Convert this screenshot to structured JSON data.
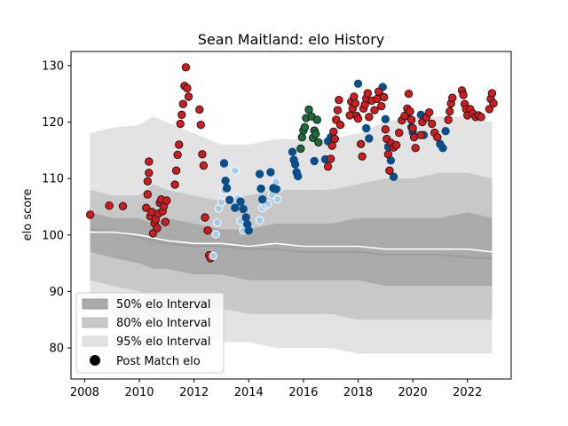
{
  "chart_data": {
    "type": "scatter",
    "title": "Sean Maitland: elo History",
    "xlabel": "",
    "ylabel": "elo score",
    "xlim": [
      2007.5,
      2023.6
    ],
    "ylim": [
      74.5,
      132.5
    ],
    "xticks": [
      2008,
      2010,
      2012,
      2014,
      2016,
      2018,
      2020,
      2022
    ],
    "yticks": [
      80,
      90,
      100,
      110,
      120,
      130
    ],
    "legend": {
      "position": "lower-left",
      "entries": [
        "50% elo Interval",
        "80% elo Interval",
        "95% elo Interval",
        "Post Match elo"
      ]
    },
    "colors": {
      "band50": "#aaaaaa",
      "band80": "#c8c8c8",
      "band95": "#e3e3e3",
      "median_line": "#999999",
      "mean_line": "#ffffff",
      "red": "#d7191c",
      "dark_green": "#1a6e3c",
      "dark_blue": "#0a4f8a",
      "light_blue": "#a6cbe8"
    },
    "bands": {
      "x": [
        2008.2,
        2009,
        2010,
        2010.5,
        2011,
        2012,
        2013,
        2014,
        2015,
        2016,
        2017,
        2018,
        2019,
        2020,
        2021,
        2022,
        2022.9
      ],
      "p95_upper": [
        118,
        119,
        119.5,
        121,
        120,
        118,
        116,
        116,
        117,
        117,
        117,
        118,
        120,
        121,
        121,
        121,
        120
      ],
      "p80_upper": [
        108,
        107,
        107,
        109,
        108,
        107,
        106,
        107,
        108,
        108,
        108,
        109,
        110,
        110,
        111,
        111,
        110
      ],
      "p50_upper": [
        104,
        103,
        103,
        102,
        103,
        102,
        101,
        101,
        102,
        102,
        102,
        103,
        103,
        103,
        103,
        104,
        103
      ],
      "p50_lower": [
        97,
        96,
        95,
        94,
        94,
        93,
        93,
        92,
        92,
        92,
        92,
        92,
        91,
        91,
        91,
        91,
        91
      ],
      "p80_lower": [
        92,
        91,
        90,
        89,
        88,
        87,
        87,
        86,
        86,
        86,
        86,
        85,
        85,
        85,
        85,
        85,
        85
      ],
      "p95_lower": [
        87,
        86,
        85,
        84,
        83,
        82,
        81,
        81,
        80,
        80,
        80,
        79,
        79,
        79,
        79,
        79,
        79
      ],
      "median": [
        101,
        100.5,
        99.5,
        99,
        98.5,
        98,
        98,
        97.5,
        97.5,
        97,
        97,
        97,
        96.5,
        96.5,
        96.5,
        96,
        95.8
      ],
      "mean": [
        100.5,
        100.5,
        100,
        99.5,
        99,
        98.5,
        98.5,
        98,
        98.5,
        98,
        98,
        98,
        97.5,
        97.5,
        97.5,
        97.5,
        97
      ]
    },
    "series": [
      {
        "color": "red",
        "points": [
          [
            2008.2,
            103.6
          ],
          [
            2008.9,
            105.2
          ],
          [
            2009.4,
            105.1
          ],
          [
            2010.25,
            104.8
          ],
          [
            2010.3,
            107.2
          ],
          [
            2010.3,
            109.5
          ],
          [
            2010.35,
            111
          ],
          [
            2010.35,
            113
          ],
          [
            2010.4,
            103.3
          ],
          [
            2010.45,
            104.1
          ],
          [
            2010.5,
            100.3
          ],
          [
            2010.55,
            102.1
          ],
          [
            2010.6,
            102.8
          ],
          [
            2010.65,
            101.2
          ],
          [
            2010.7,
            103.8
          ],
          [
            2010.75,
            105.7
          ],
          [
            2010.8,
            106.3
          ],
          [
            2010.85,
            104.2
          ],
          [
            2010.9,
            105.1
          ],
          [
            2010.95,
            102.3
          ],
          [
            2011.0,
            106.1
          ],
          [
            2011.3,
            108.9
          ],
          [
            2011.35,
            111.4
          ],
          [
            2011.4,
            114.2
          ],
          [
            2011.45,
            116
          ],
          [
            2011.5,
            119.7
          ],
          [
            2011.55,
            121.3
          ],
          [
            2011.6,
            123.2
          ],
          [
            2011.65,
            126.4
          ],
          [
            2011.7,
            129.7
          ],
          [
            2011.75,
            126
          ],
          [
            2011.8,
            124.5
          ],
          [
            2012.2,
            122.2
          ],
          [
            2012.25,
            119.5
          ],
          [
            2012.3,
            114.3
          ],
          [
            2012.35,
            112.3
          ],
          [
            2012.4,
            103.1
          ],
          [
            2012.5,
            100.8
          ],
          [
            2012.55,
            96.4
          ],
          [
            2012.6,
            95.9
          ]
        ]
      },
      {
        "color": "light_blue",
        "points": [
          [
            2012.7,
            96.3
          ],
          [
            2012.8,
            100.1
          ],
          [
            2012.85,
            102.2
          ],
          [
            2012.9,
            104.7
          ],
          [
            2013.0,
            105.8
          ],
          [
            2013.1,
            107.9
          ],
          [
            2013.5,
            111.4
          ],
          [
            2013.6,
            106.5
          ],
          [
            2013.7,
            102.5
          ],
          [
            2013.8,
            100.8
          ],
          [
            2014.4,
            102.6
          ],
          [
            2014.5,
            104.8
          ],
          [
            2014.6,
            105.2
          ],
          [
            2014.7,
            105.5
          ],
          [
            2014.85,
            107.1
          ],
          [
            2014.9,
            108.7
          ],
          [
            2015.0,
            109.4
          ],
          [
            2015.05,
            106.3
          ],
          [
            2015.1,
            108.2
          ]
        ]
      },
      {
        "color": "dark_blue",
        "points": [
          [
            2013.1,
            112.7
          ],
          [
            2013.15,
            109.6
          ],
          [
            2013.2,
            108.3
          ],
          [
            2013.3,
            106.2
          ],
          [
            2013.5,
            104.8
          ],
          [
            2013.7,
            105.9
          ],
          [
            2013.8,
            104.6
          ],
          [
            2013.9,
            103.1
          ],
          [
            2013.95,
            101.9
          ],
          [
            2014.0,
            100.8
          ],
          [
            2014.4,
            110.8
          ],
          [
            2014.45,
            108.2
          ],
          [
            2014.5,
            106.3
          ],
          [
            2014.8,
            111.1
          ],
          [
            2014.9,
            108.3
          ],
          [
            2015.0,
            108.1
          ],
          [
            2015.6,
            114.7
          ],
          [
            2015.65,
            113.3
          ],
          [
            2015.7,
            112.5
          ],
          [
            2015.75,
            111.1
          ],
          [
            2015.8,
            110.4
          ],
          [
            2016.4,
            113.1
          ],
          [
            2016.8,
            113.4
          ],
          [
            2016.9,
            116.6
          ],
          [
            2017.0,
            117.3
          ],
          [
            2018.0,
            126.8
          ],
          [
            2018.3,
            118.9
          ],
          [
            2018.4,
            117.1
          ],
          [
            2018.8,
            124.8
          ],
          [
            2019.0,
            120.5
          ],
          [
            2019.1,
            115.6
          ],
          [
            2019.2,
            113.2
          ],
          [
            2019.3,
            110.3
          ],
          [
            2019.8,
            121.1
          ],
          [
            2020.0,
            118.2
          ],
          [
            2020.3,
            121.3
          ],
          [
            2020.4,
            117.7
          ],
          [
            2021.0,
            116.1
          ],
          [
            2021.1,
            115.4
          ],
          [
            2021.2,
            118.4
          ],
          [
            2018.9,
            126.2
          ],
          [
            2019.95,
            119.1
          ]
        ]
      },
      {
        "color": "dark_green",
        "points": [
          [
            2015.9,
            115.3
          ],
          [
            2015.95,
            117.3
          ],
          [
            2016.0,
            118.5
          ],
          [
            2016.05,
            119.1
          ],
          [
            2016.1,
            120.7
          ],
          [
            2016.2,
            122.2
          ],
          [
            2016.3,
            121.0
          ],
          [
            2016.35,
            117.2
          ],
          [
            2016.4,
            118.5
          ],
          [
            2016.45,
            117.9
          ],
          [
            2016.5,
            120.4
          ],
          [
            2016.55,
            116.4
          ]
        ]
      },
      {
        "color": "red",
        "points": [
          [
            2016.9,
            112.1
          ],
          [
            2017.0,
            113.5
          ],
          [
            2017.05,
            115.8
          ],
          [
            2017.1,
            118.3
          ],
          [
            2017.15,
            117.0
          ],
          [
            2017.2,
            120.4
          ],
          [
            2017.25,
            122.1
          ],
          [
            2017.3,
            123.9
          ],
          [
            2017.35,
            119.5
          ],
          [
            2017.7,
            121.2
          ],
          [
            2017.75,
            123.6
          ],
          [
            2017.8,
            122.4
          ],
          [
            2017.85,
            124.5
          ],
          [
            2017.9,
            123.3
          ],
          [
            2017.95,
            121.1
          ],
          [
            2018.0,
            120.6
          ],
          [
            2018.1,
            116.1
          ],
          [
            2018.15,
            113.9
          ],
          [
            2018.2,
            122.4
          ],
          [
            2018.25,
            123.1
          ],
          [
            2018.3,
            124.2
          ],
          [
            2018.35,
            125.1
          ],
          [
            2018.4,
            120.9
          ],
          [
            2018.5,
            123.8
          ],
          [
            2018.6,
            122.1
          ],
          [
            2018.7,
            124.1
          ],
          [
            2018.75,
            125.4
          ],
          [
            2018.85,
            122.8
          ],
          [
            2018.95,
            124.4
          ],
          [
            2019.0,
            118.7
          ],
          [
            2019.05,
            117.0
          ],
          [
            2019.1,
            114.3
          ],
          [
            2019.15,
            111.4
          ],
          [
            2019.2,
            116.3
          ],
          [
            2019.3,
            115.5
          ],
          [
            2019.4,
            115.9
          ],
          [
            2019.5,
            118.1
          ],
          [
            2019.6,
            120.3
          ],
          [
            2019.7,
            121.1
          ],
          [
            2019.8,
            122.4
          ],
          [
            2019.85,
            125.0
          ],
          [
            2019.9,
            121.9
          ],
          [
            2019.95,
            120.4
          ],
          [
            2020.0,
            118.9
          ],
          [
            2020.05,
            117.3
          ],
          [
            2020.1,
            115.4
          ],
          [
            2020.3,
            117.7
          ],
          [
            2020.35,
            120.0
          ],
          [
            2020.5,
            120.8
          ],
          [
            2020.6,
            121.7
          ],
          [
            2020.7,
            119.7
          ],
          [
            2020.8,
            118.1
          ],
          [
            2020.9,
            117.3
          ],
          [
            2021.3,
            120.4
          ],
          [
            2021.35,
            121.9
          ],
          [
            2021.4,
            123.3
          ],
          [
            2021.45,
            124.3
          ],
          [
            2021.8,
            125.6
          ],
          [
            2021.85,
            124.8
          ],
          [
            2021.9,
            123.2
          ],
          [
            2021.95,
            122.3
          ],
          [
            2022.0,
            121.2
          ],
          [
            2022.1,
            122.3
          ],
          [
            2022.2,
            121.5
          ],
          [
            2022.3,
            120.9
          ],
          [
            2022.4,
            121.2
          ],
          [
            2022.5,
            120.9
          ],
          [
            2022.8,
            122.3
          ],
          [
            2022.85,
            124.1
          ],
          [
            2022.9,
            125.1
          ],
          [
            2022.95,
            123.3
          ]
        ]
      }
    ]
  }
}
